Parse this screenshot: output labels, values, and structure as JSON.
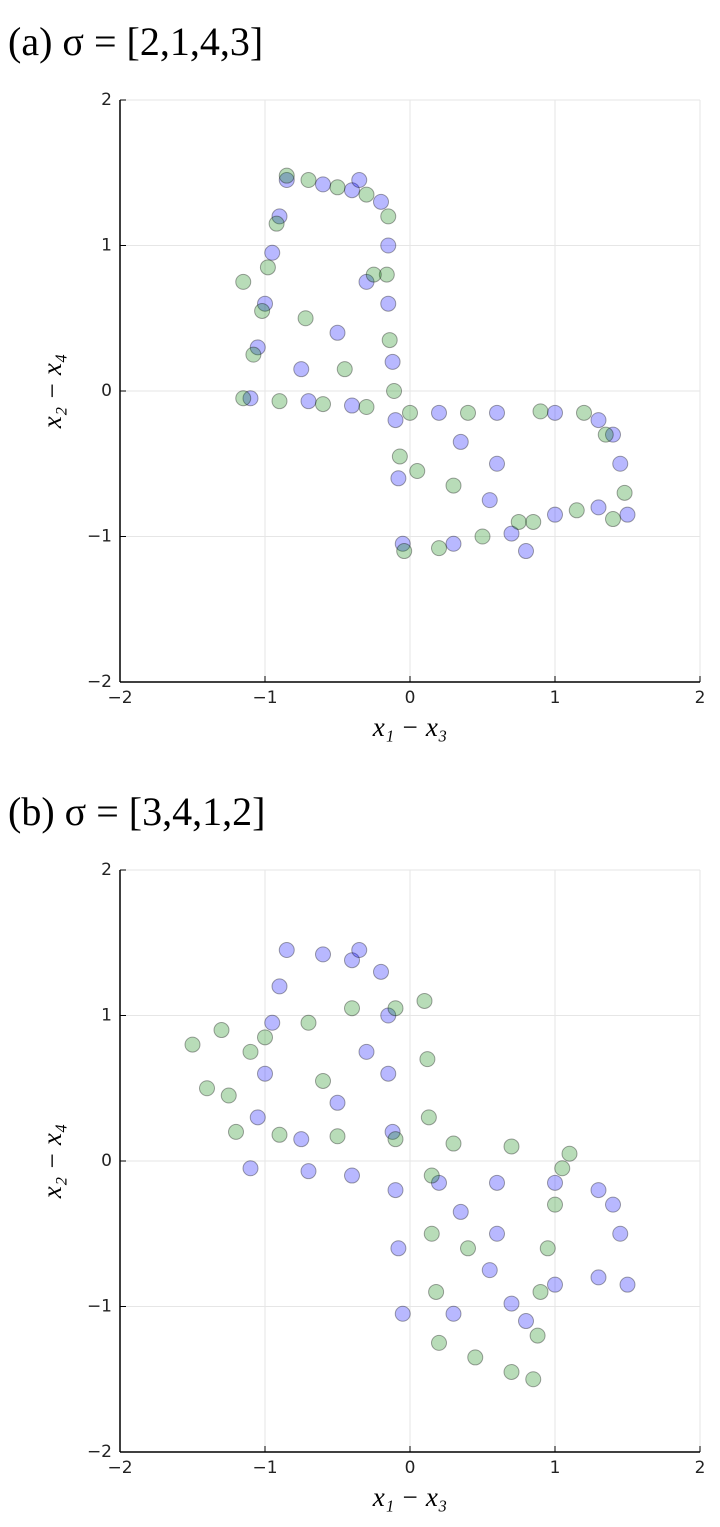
{
  "chart_data": [
    {
      "type": "scatter",
      "title": "(a) σ = [2,1,4,3]",
      "xlabel": "x₁ − x₃",
      "ylabel": "x₂ − x₄",
      "xlim": [
        -2,
        2
      ],
      "ylim": [
        -2,
        2
      ],
      "xticks": [
        {
          "value": -2,
          "label": "−2"
        },
        {
          "value": -1,
          "label": "−1"
        },
        0,
        1,
        2
      ],
      "yticks": [
        {
          "value": -2,
          "label": "−2"
        },
        {
          "value": -1,
          "label": "−1"
        },
        0,
        1,
        2
      ],
      "grid": true,
      "series": [
        {
          "color": "#0000ff",
          "x": [
            -1.1,
            -1.05,
            -1.0,
            -0.95,
            -0.9,
            -0.85,
            -0.6,
            -0.4,
            -0.2,
            -0.15,
            -0.15,
            -0.12,
            -0.1,
            -0.08,
            -0.05,
            0.3,
            0.7,
            1.0,
            1.3,
            1.5,
            1.45,
            1.3,
            1.0,
            0.6,
            0.2,
            -0.4,
            -0.7,
            -0.3,
            0.35,
            -0.75,
            0.55,
            -0.5,
            0.8,
            1.4,
            -0.35,
            0.6
          ],
          "y": [
            -0.05,
            0.3,
            0.6,
            0.95,
            1.2,
            1.45,
            1.42,
            1.38,
            1.3,
            1.0,
            0.6,
            0.2,
            -0.2,
            -0.6,
            -1.05,
            -1.05,
            -0.98,
            -0.85,
            -0.8,
            -0.85,
            -0.5,
            -0.2,
            -0.15,
            -0.15,
            -0.15,
            -0.1,
            -0.07,
            0.75,
            -0.35,
            0.15,
            -0.75,
            0.4,
            -1.1,
            -0.3,
            1.45,
            -0.5
          ]
        },
        {
          "color": "#008000",
          "x": [
            -1.15,
            -1.08,
            -1.02,
            -0.98,
            -0.92,
            -0.85,
            -0.7,
            -0.5,
            -0.3,
            -0.15,
            -0.16,
            -0.14,
            -0.11,
            -0.07,
            -0.04,
            0.2,
            0.5,
            0.85,
            1.15,
            1.4,
            1.48,
            1.35,
            1.2,
            0.9,
            0.4,
            0.0,
            -0.3,
            -0.6,
            -0.9,
            -1.15,
            -0.72,
            -0.45,
            0.3,
            0.75,
            -0.25,
            0.05
          ],
          "y": [
            -0.05,
            0.25,
            0.55,
            0.85,
            1.15,
            1.48,
            1.45,
            1.4,
            1.35,
            1.2,
            0.8,
            0.35,
            0.0,
            -0.45,
            -1.1,
            -1.08,
            -1.0,
            -0.9,
            -0.82,
            -0.88,
            -0.7,
            -0.3,
            -0.15,
            -0.14,
            -0.15,
            -0.15,
            -0.11,
            -0.09,
            -0.07,
            0.75,
            0.5,
            0.15,
            -0.65,
            -0.9,
            0.8,
            -0.55
          ]
        }
      ]
    },
    {
      "type": "scatter",
      "title": "(b) σ = [3,4,1,2]",
      "xlabel": "x₁ − x₃",
      "ylabel": "x₂ − x₄",
      "xlim": [
        -2,
        2
      ],
      "ylim": [
        -2,
        2
      ],
      "xticks": [
        {
          "value": -2,
          "label": "−2"
        },
        {
          "value": -1,
          "label": "−1"
        },
        0,
        1,
        2
      ],
      "yticks": [
        {
          "value": -2,
          "label": "−2"
        },
        {
          "value": -1,
          "label": "−1"
        },
        0,
        1,
        2
      ],
      "grid": true,
      "series": [
        {
          "color": "#0000ff",
          "x": [
            -1.1,
            -1.05,
            -1.0,
            -0.95,
            -0.9,
            -0.85,
            -0.6,
            -0.4,
            -0.2,
            -0.15,
            -0.15,
            -0.12,
            -0.1,
            -0.08,
            -0.05,
            0.3,
            0.7,
            1.0,
            1.3,
            1.5,
            1.45,
            1.3,
            1.0,
            0.6,
            0.2,
            -0.4,
            -0.7,
            -0.3,
            0.35,
            -0.75,
            0.55,
            -0.5,
            0.8,
            1.4,
            -0.35,
            0.6
          ],
          "y": [
            -0.05,
            0.3,
            0.6,
            0.95,
            1.2,
            1.45,
            1.42,
            1.38,
            1.3,
            1.0,
            0.6,
            0.2,
            -0.2,
            -0.6,
            -1.05,
            -1.05,
            -0.98,
            -0.85,
            -0.8,
            -0.85,
            -0.5,
            -0.2,
            -0.15,
            -0.15,
            -0.15,
            -0.1,
            -0.07,
            0.75,
            -0.35,
            0.15,
            -0.75,
            0.4,
            -1.1,
            -0.3,
            1.45,
            -0.5
          ]
        },
        {
          "color": "#008000",
          "x": [
            -1.5,
            -1.3,
            -1.0,
            -0.7,
            -0.4,
            -0.1,
            0.1,
            0.12,
            0.13,
            0.15,
            0.15,
            0.18,
            0.2,
            0.45,
            0.7,
            0.85,
            0.88,
            0.9,
            0.95,
            1.0,
            1.05,
            1.1,
            0.7,
            0.3,
            -0.1,
            -0.5,
            -0.9,
            -1.2,
            -1.4,
            -1.1,
            -0.6,
            0.4,
            -1.25
          ],
          "y": [
            0.8,
            0.9,
            0.85,
            0.95,
            1.05,
            1.05,
            1.1,
            0.7,
            0.3,
            -0.1,
            -0.5,
            -0.9,
            -1.25,
            -1.35,
            -1.45,
            -1.5,
            -1.2,
            -0.9,
            -0.6,
            -0.3,
            -0.05,
            0.05,
            0.1,
            0.12,
            0.15,
            0.17,
            0.18,
            0.2,
            0.5,
            0.75,
            0.55,
            -0.6,
            0.45
          ]
        }
      ]
    }
  ]
}
